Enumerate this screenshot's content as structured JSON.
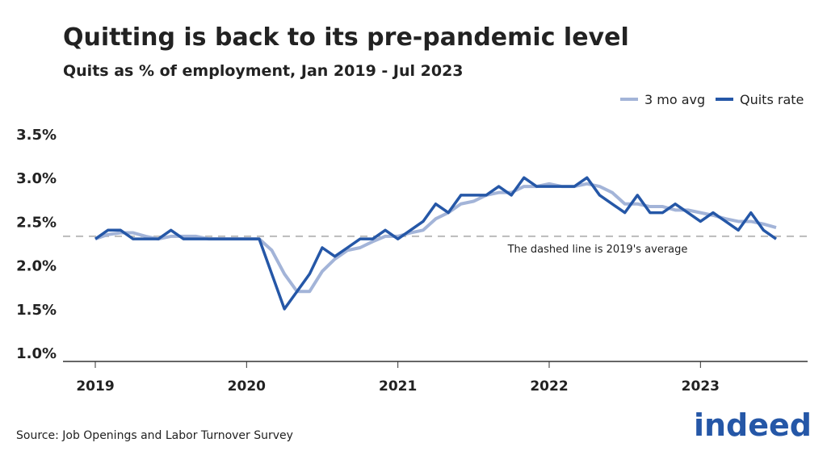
{
  "chart_data": {
    "type": "line",
    "title": "Quitting is back to its pre-pandemic level",
    "subtitle": "Quits as % of employment, Jan 2019 - Jul 2023",
    "source": "Source: Job Openings and Labor Turnover Survey",
    "logo": "indeed",
    "annotation": "The dashed line is 2019's average",
    "reference_line": 2.33,
    "categories": [
      "2019",
      null,
      null,
      null,
      null,
      null,
      null,
      null,
      null,
      null,
      null,
      null,
      "2020",
      null,
      null,
      null,
      null,
      null,
      null,
      null,
      null,
      null,
      null,
      null,
      "2021",
      null,
      null,
      null,
      null,
      null,
      null,
      null,
      null,
      null,
      null,
      null,
      "2022",
      null,
      null,
      null,
      null,
      null,
      null,
      null,
      null,
      null,
      null,
      null,
      "2023",
      null,
      null,
      null,
      null,
      null,
      null
    ],
    "series": [
      {
        "name": "3 mo avg",
        "color": "#a3b4d8",
        "values": [
          2.3,
          2.35,
          2.37,
          2.37,
          2.33,
          2.3,
          2.33,
          2.33,
          2.33,
          2.3,
          2.3,
          2.3,
          2.3,
          2.3,
          2.17,
          1.9,
          1.7,
          1.7,
          1.93,
          2.07,
          2.17,
          2.2,
          2.27,
          2.33,
          2.33,
          2.37,
          2.4,
          2.53,
          2.6,
          2.7,
          2.73,
          2.8,
          2.83,
          2.83,
          2.9,
          2.9,
          2.93,
          2.9,
          2.9,
          2.93,
          2.9,
          2.83,
          2.7,
          2.7,
          2.67,
          2.67,
          2.63,
          2.63,
          2.6,
          2.57,
          2.53,
          2.5,
          2.5,
          2.47,
          2.43
        ]
      },
      {
        "name": "Quits rate",
        "color": "#2557a7",
        "values": [
          2.3,
          2.4,
          2.4,
          2.3,
          2.3,
          2.3,
          2.4,
          2.3,
          2.3,
          2.3,
          2.3,
          2.3,
          2.3,
          2.3,
          1.9,
          1.5,
          1.7,
          1.9,
          2.2,
          2.1,
          2.2,
          2.3,
          2.3,
          2.4,
          2.3,
          2.4,
          2.5,
          2.7,
          2.6,
          2.8,
          2.8,
          2.8,
          2.9,
          2.8,
          3.0,
          2.9,
          2.9,
          2.9,
          2.9,
          3.0,
          2.8,
          2.7,
          2.6,
          2.8,
          2.6,
          2.6,
          2.7,
          2.6,
          2.5,
          2.6,
          2.5,
          2.4,
          2.6,
          2.4,
          2.3
        ]
      }
    ],
    "ylim": [
      0.9,
      3.5
    ],
    "yticks": [
      {
        "value": 1.0,
        "label": "1.0%"
      },
      {
        "value": 1.5,
        "label": "1.5%"
      },
      {
        "value": 2.0,
        "label": "2.0%"
      },
      {
        "value": 2.5,
        "label": "2.5%"
      },
      {
        "value": 3.0,
        "label": "3.0%"
      },
      {
        "value": 3.5,
        "label": "3.5%"
      }
    ],
    "legend": "top-right"
  }
}
